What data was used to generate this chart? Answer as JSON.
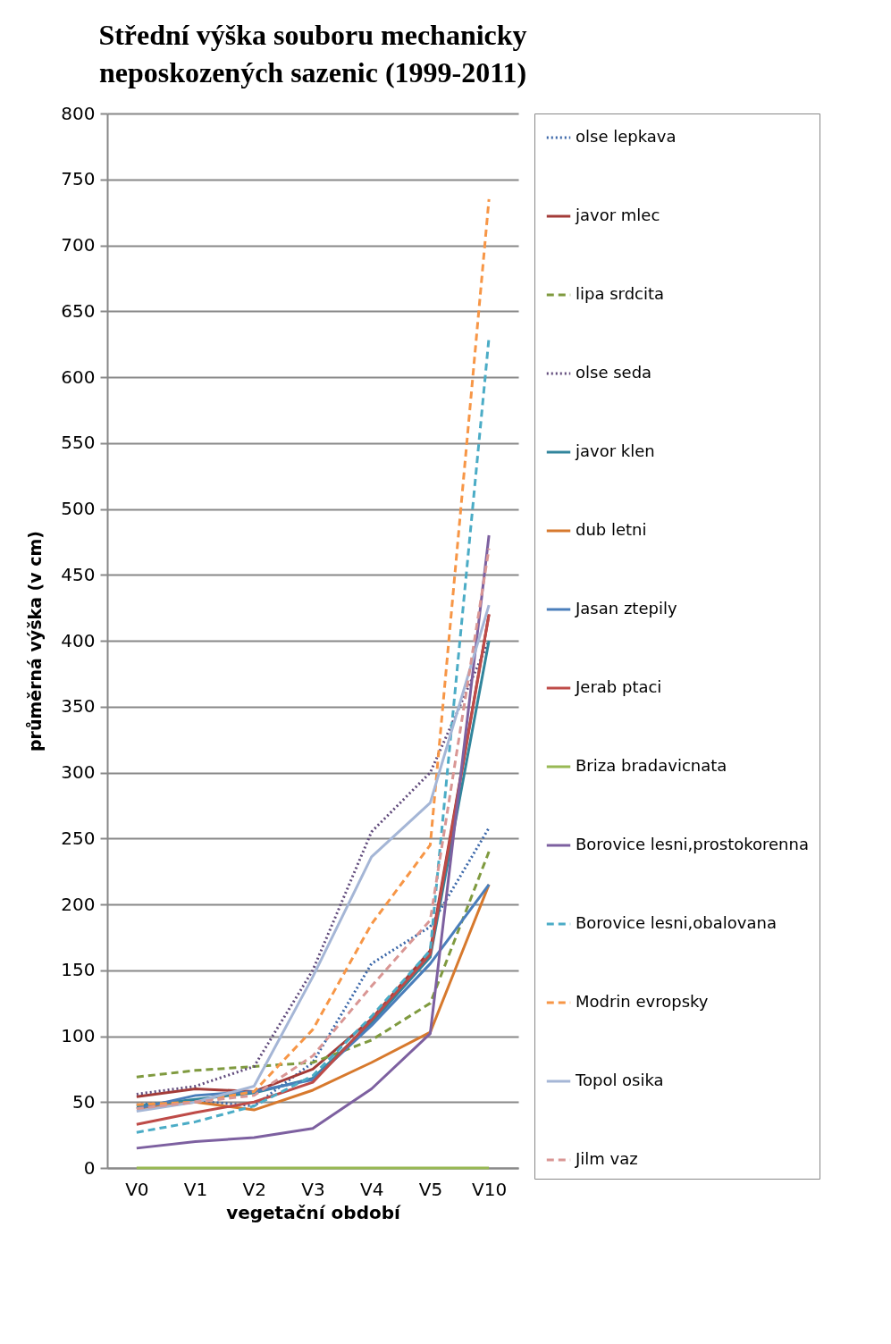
{
  "chart_data": {
    "type": "line",
    "title": "Střední výška souboru mechanicky neposkozených sazenic (1999-2011)",
    "xlabel": "vegetační období",
    "ylabel": "průměrná výška (v cm)",
    "categories": [
      "V0",
      "V1",
      "V2",
      "V3",
      "V4",
      "V5",
      "V10"
    ],
    "ylim": [
      0,
      800
    ],
    "yticks": [
      0,
      50,
      100,
      150,
      200,
      250,
      300,
      350,
      400,
      450,
      500,
      550,
      600,
      650,
      700,
      750,
      800
    ],
    "grid": "y",
    "legend": "right",
    "marker": "none",
    "series": [
      {
        "name": "olse lepkava",
        "color": "#3a66a8",
        "line_style": "dotted",
        "values": [
          48,
          51,
          47,
          80,
          155,
          183,
          258
        ]
      },
      {
        "name": "javor mlec",
        "color": "#a33b38",
        "line_style": "solid",
        "values": [
          54,
          60,
          58,
          75,
          113,
          165,
          420
        ]
      },
      {
        "name": "lipa srdcita",
        "color": "#7f9a3f",
        "line_style": "dashed",
        "values": [
          69,
          74,
          77,
          80,
          97,
          125,
          240
        ]
      },
      {
        "name": "olse seda",
        "color": "#604a7b",
        "line_style": "dotted",
        "values": [
          56,
          62,
          77,
          150,
          255,
          300,
          400
        ]
      },
      {
        "name": "javor klen",
        "color": "#31859c",
        "line_style": "solid",
        "values": [
          47,
          52,
          57,
          68,
          110,
          160,
          400
        ]
      },
      {
        "name": "dub letni",
        "color": "#d7792d",
        "line_style": "solid",
        "values": [
          45,
          50,
          44,
          59,
          80,
          103,
          215
        ]
      },
      {
        "name": "Jasan ztepily",
        "color": "#4a7ebb",
        "line_style": "solid",
        "values": [
          45,
          55,
          58,
          67,
          108,
          155,
          215
        ]
      },
      {
        "name": "Jerab ptaci",
        "color": "#be4b48",
        "line_style": "solid",
        "values": [
          33,
          42,
          50,
          65,
          112,
          162,
          420
        ]
      },
      {
        "name": "Briza bradavicnata",
        "color": "#98b954",
        "line_style": "solid",
        "values": [
          0,
          0,
          0,
          0,
          0,
          0,
          0
        ]
      },
      {
        "name": "Borovice lesni,prostokorenna",
        "color": "#7d60a0",
        "line_style": "solid",
        "values": [
          15,
          20,
          23,
          30,
          60,
          102,
          480
        ]
      },
      {
        "name": "Borovice lesni,obalovana",
        "color": "#4bacc6",
        "line_style": "dashed",
        "values": [
          27,
          35,
          47,
          70,
          115,
          165,
          630
        ]
      },
      {
        "name": "Modrin evropsky",
        "color": "#f79646",
        "line_style": "dashed",
        "values": [
          48,
          50,
          58,
          105,
          185,
          245,
          735
        ]
      },
      {
        "name": "Topol osika",
        "color": "#a5b6d6",
        "line_style": "solid",
        "values": [
          43,
          50,
          62,
          145,
          236,
          277,
          427
        ]
      },
      {
        "name": "Jilm vaz",
        "color": "#d99694",
        "line_style": "dashed",
        "values": [
          45,
          50,
          55,
          85,
          138,
          188,
          470
        ]
      }
    ]
  }
}
